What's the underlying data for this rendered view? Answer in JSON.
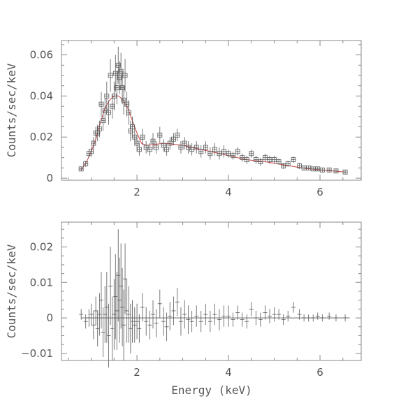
{
  "chart_data": [
    {
      "type": "scatter",
      "ylabel": "Counts/sec/keV",
      "xlabel": "",
      "xlim": [
        0.35,
        6.9
      ],
      "ylim": [
        -0.001,
        0.067
      ],
      "xticks": [
        2,
        4,
        6
      ],
      "xtick_labels": [
        "2",
        "4",
        "6"
      ],
      "yticks": [
        0,
        0.02,
        0.04,
        0.06
      ],
      "ytick_labels": [
        "0",
        "0.02",
        "0.04",
        "0.06"
      ],
      "colors": {
        "data": "#555555",
        "model": "#cc4444"
      },
      "series": [
        {
          "marker": "square-with-errorbars",
          "points": [
            [
              0.78,
              0.0045,
              0.001
            ],
            [
              0.88,
              0.007,
              0.0015
            ],
            [
              0.95,
              0.012,
              0.002
            ],
            [
              1.0,
              0.013,
              0.0025
            ],
            [
              1.05,
              0.017,
              0.003
            ],
            [
              1.1,
              0.022,
              0.003
            ],
            [
              1.14,
              0.022,
              0.004
            ],
            [
              1.18,
              0.024,
              0.004
            ],
            [
              1.22,
              0.036,
              0.006
            ],
            [
              1.26,
              0.028,
              0.005
            ],
            [
              1.3,
              0.033,
              0.006
            ],
            [
              1.34,
              0.04,
              0.007
            ],
            [
              1.38,
              0.032,
              0.006
            ],
            [
              1.42,
              0.05,
              0.008
            ],
            [
              1.46,
              0.035,
              0.006
            ],
            [
              1.5,
              0.04,
              0.007
            ],
            [
              1.53,
              0.051,
              0.009
            ],
            [
              1.56,
              0.044,
              0.008
            ],
            [
              1.59,
              0.055,
              0.009
            ],
            [
              1.62,
              0.049,
              0.008
            ],
            [
              1.65,
              0.052,
              0.009
            ],
            [
              1.68,
              0.044,
              0.008
            ],
            [
              1.71,
              0.038,
              0.007
            ],
            [
              1.74,
              0.05,
              0.008
            ],
            [
              1.78,
              0.036,
              0.006
            ],
            [
              1.82,
              0.032,
              0.006
            ],
            [
              1.86,
              0.023,
              0.005
            ],
            [
              1.9,
              0.025,
              0.005
            ],
            [
              1.95,
              0.02,
              0.004
            ],
            [
              2.0,
              0.017,
              0.004
            ],
            [
              2.05,
              0.014,
              0.003
            ],
            [
              2.12,
              0.02,
              0.004
            ],
            [
              2.2,
              0.015,
              0.003
            ],
            [
              2.28,
              0.014,
              0.003
            ],
            [
              2.35,
              0.018,
              0.004
            ],
            [
              2.42,
              0.015,
              0.003
            ],
            [
              2.5,
              0.021,
              0.004
            ],
            [
              2.58,
              0.016,
              0.003
            ],
            [
              2.65,
              0.014,
              0.003
            ],
            [
              2.72,
              0.017,
              0.003
            ],
            [
              2.8,
              0.019,
              0.003
            ],
            [
              2.88,
              0.021,
              0.003
            ],
            [
              2.96,
              0.015,
              0.003
            ],
            [
              3.04,
              0.017,
              0.003
            ],
            [
              3.12,
              0.015,
              0.003
            ],
            [
              3.2,
              0.014,
              0.003
            ],
            [
              3.3,
              0.015,
              0.003
            ],
            [
              3.4,
              0.013,
              0.003
            ],
            [
              3.5,
              0.015,
              0.003
            ],
            [
              3.6,
              0.012,
              0.003
            ],
            [
              3.7,
              0.014,
              0.003
            ],
            [
              3.8,
              0.012,
              0.003
            ],
            [
              3.9,
              0.013,
              0.003
            ],
            [
              4.0,
              0.012,
              0.002
            ],
            [
              4.1,
              0.011,
              0.002
            ],
            [
              4.2,
              0.013,
              0.002
            ],
            [
              4.3,
              0.01,
              0.002
            ],
            [
              4.4,
              0.009,
              0.002
            ],
            [
              4.5,
              0.012,
              0.002
            ],
            [
              4.6,
              0.009,
              0.002
            ],
            [
              4.7,
              0.008,
              0.002
            ],
            [
              4.8,
              0.01,
              0.002
            ],
            [
              4.9,
              0.009,
              0.002
            ],
            [
              5.0,
              0.009,
              0.002
            ],
            [
              5.1,
              0.008,
              0.0015
            ],
            [
              5.2,
              0.006,
              0.0015
            ],
            [
              5.3,
              0.007,
              0.0015
            ],
            [
              5.42,
              0.009,
              0.0015
            ],
            [
              5.55,
              0.006,
              0.0015
            ],
            [
              5.65,
              0.005,
              0.001
            ],
            [
              5.75,
              0.005,
              0.001
            ],
            [
              5.85,
              0.0045,
              0.001
            ],
            [
              5.95,
              0.0045,
              0.001
            ],
            [
              6.05,
              0.004,
              0.001
            ],
            [
              6.2,
              0.004,
              0.001
            ],
            [
              6.35,
              0.0035,
              0.001
            ],
            [
              6.55,
              0.003,
              0.001
            ]
          ]
        },
        {
          "marker": "line",
          "x": [
            0.78,
            0.9,
            1.0,
            1.1,
            1.2,
            1.3,
            1.4,
            1.5,
            1.6,
            1.7,
            1.8,
            1.9,
            2.0,
            2.1,
            2.2,
            2.4,
            2.6,
            2.8,
            3.0,
            3.3,
            3.6,
            4.0,
            4.4,
            4.8,
            5.2,
            5.6,
            6.0,
            6.55
          ],
          "y": [
            0.004,
            0.008,
            0.013,
            0.019,
            0.027,
            0.034,
            0.038,
            0.04,
            0.04,
            0.038,
            0.034,
            0.028,
            0.022,
            0.017,
            0.016,
            0.0165,
            0.017,
            0.0165,
            0.016,
            0.0145,
            0.013,
            0.011,
            0.009,
            0.008,
            0.0065,
            0.005,
            0.004,
            0.003
          ]
        }
      ]
    },
    {
      "type": "scatter",
      "ylabel": "Counts/sec/keV",
      "xlabel": "Energy (keV)",
      "xlim": [
        0.35,
        6.9
      ],
      "ylim": [
        -0.012,
        0.027
      ],
      "xticks": [
        2,
        4,
        6
      ],
      "xtick_labels": [
        "2",
        "4",
        "6"
      ],
      "yticks": [
        -0.01,
        0,
        0.01,
        0.02
      ],
      "ytick_labels": [
        "−0.01",
        "0",
        "0.01",
        "0.02"
      ],
      "colors": {
        "data": "#555555",
        "zero_line": "#555555"
      },
      "series": [
        {
          "marker": "cross-with-errorbars",
          "points": [
            [
              0.78,
              0.001,
              0.0015
            ],
            [
              0.88,
              -0.001,
              0.002
            ],
            [
              0.95,
              0.0,
              0.0025
            ],
            [
              1.0,
              0.001,
              0.003
            ],
            [
              1.05,
              -0.002,
              0.004
            ],
            [
              1.1,
              0.002,
              0.004
            ],
            [
              1.14,
              -0.003,
              0.005
            ],
            [
              1.18,
              0.001,
              0.006
            ],
            [
              1.22,
              0.005,
              0.008
            ],
            [
              1.26,
              -0.004,
              0.007
            ],
            [
              1.3,
              0.001,
              0.008
            ],
            [
              1.34,
              0.003,
              0.01
            ],
            [
              1.38,
              -0.005,
              0.009
            ],
            [
              1.42,
              0.009,
              0.011
            ],
            [
              1.46,
              -0.003,
              0.009
            ],
            [
              1.5,
              0.001,
              0.01
            ],
            [
              1.53,
              0.006,
              0.012
            ],
            [
              1.56,
              0.002,
              0.011
            ],
            [
              1.59,
              0.012,
              0.013
            ],
            [
              1.62,
              0.005,
              0.012
            ],
            [
              1.65,
              0.009,
              0.012
            ],
            [
              1.68,
              0.003,
              0.011
            ],
            [
              1.71,
              -0.002,
              0.01
            ],
            [
              1.74,
              0.011,
              0.01
            ],
            [
              1.78,
              0.002,
              0.009
            ],
            [
              1.82,
              0.001,
              0.008
            ],
            [
              1.86,
              -0.003,
              0.007
            ],
            [
              1.9,
              -0.001,
              0.006
            ],
            [
              1.95,
              -0.002,
              0.005
            ],
            [
              2.0,
              -0.001,
              0.005
            ],
            [
              2.05,
              -0.003,
              0.004
            ],
            [
              2.12,
              0.003,
              0.004
            ],
            [
              2.2,
              -0.001,
              0.004
            ],
            [
              2.28,
              -0.002,
              0.004
            ],
            [
              2.35,
              0.001,
              0.004
            ],
            [
              2.42,
              -0.0015,
              0.004
            ],
            [
              2.5,
              0.004,
              0.004
            ],
            [
              2.58,
              -0.001,
              0.004
            ],
            [
              2.65,
              -0.0025,
              0.004
            ],
            [
              2.72,
              0.0005,
              0.004
            ],
            [
              2.8,
              0.002,
              0.004
            ],
            [
              2.88,
              0.0045,
              0.004
            ],
            [
              2.96,
              -0.001,
              0.004
            ],
            [
              3.04,
              0.001,
              0.004
            ],
            [
              3.12,
              -0.0005,
              0.004
            ],
            [
              3.2,
              -0.001,
              0.003
            ],
            [
              3.3,
              0.0005,
              0.003
            ],
            [
              3.4,
              -0.001,
              0.003
            ],
            [
              3.5,
              0.001,
              0.003
            ],
            [
              3.6,
              -0.001,
              0.003
            ],
            [
              3.7,
              0.001,
              0.003
            ],
            [
              3.8,
              -0.0005,
              0.003
            ],
            [
              3.9,
              0.0005,
              0.003
            ],
            [
              4.0,
              0.0005,
              0.003
            ],
            [
              4.1,
              -0.0005,
              0.002
            ],
            [
              4.2,
              0.0015,
              0.002
            ],
            [
              4.3,
              -0.0005,
              0.002
            ],
            [
              4.4,
              -0.001,
              0.002
            ],
            [
              4.5,
              0.0025,
              0.002
            ],
            [
              4.6,
              0.0,
              0.002
            ],
            [
              4.7,
              -0.0005,
              0.002
            ],
            [
              4.8,
              0.0015,
              0.002
            ],
            [
              4.9,
              0.0005,
              0.002
            ],
            [
              5.0,
              0.001,
              0.002
            ],
            [
              5.1,
              0.001,
              0.0015
            ],
            [
              5.2,
              -0.0005,
              0.0015
            ],
            [
              5.3,
              0.0005,
              0.0015
            ],
            [
              5.42,
              0.003,
              0.0015
            ],
            [
              5.55,
              0.001,
              0.0015
            ],
            [
              5.65,
              0.0,
              0.001
            ],
            [
              5.75,
              0.0,
              0.001
            ],
            [
              5.85,
              0.0,
              0.001
            ],
            [
              5.95,
              0.0005,
              0.001
            ],
            [
              6.05,
              0.0,
              0.001
            ],
            [
              6.2,
              0.0005,
              0.001
            ],
            [
              6.35,
              0.0,
              0.001
            ],
            [
              6.55,
              0.0,
              0.001
            ]
          ]
        }
      ]
    }
  ]
}
